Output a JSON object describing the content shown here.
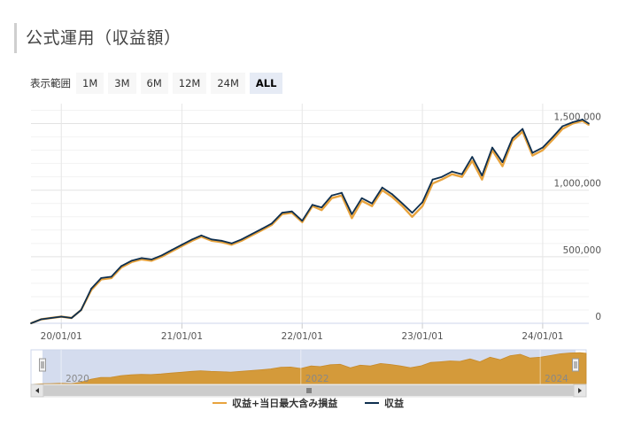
{
  "page": {
    "title": "公式運用（収益額）"
  },
  "range_selector": {
    "label": "表示範囲",
    "buttons": [
      {
        "label": "1M"
      },
      {
        "label": "3M"
      },
      {
        "label": "6M"
      },
      {
        "label": "12M"
      },
      {
        "label": "24M"
      },
      {
        "label": "ALL",
        "active": true
      }
    ]
  },
  "colors": {
    "series_a": "#E8A33D",
    "series_b": "#0E2F4F",
    "navigator_fill": "#D49A3A",
    "navigator_mask": "#ccd6eb"
  },
  "icons": {
    "scroll_left": "arrow-left-icon",
    "scroll_right": "arrow-right-icon",
    "scroll_grip": "grip-icon",
    "handle": "drag-handle-icon"
  },
  "chart_data": {
    "type": "line",
    "x_axis": {
      "type": "date",
      "range": [
        "2019-10-01",
        "2024-05-20"
      ],
      "tick_labels": [
        "20/01/01",
        "21/01/01",
        "22/01/01",
        "23/01/01",
        "24/01/01"
      ],
      "tick_dates": [
        "2020-01-01",
        "2021-01-01",
        "2022-01-01",
        "2023-01-01",
        "2024-01-01"
      ]
    },
    "y_axis": {
      "range": [
        0,
        1650000
      ],
      "tick_values": [
        0,
        500000,
        1000000,
        1500000
      ],
      "tick_labels": [
        "0",
        "500,000",
        "1,000,000",
        "1,500,000"
      ],
      "position": "right"
    },
    "grid": true,
    "legend_position": "bottom-center",
    "navigator": {
      "year_labels": [
        "2020",
        "2022",
        "2024"
      ],
      "year_dates": [
        "2020-01-01",
        "2022-01-01",
        "2024-01-01"
      ]
    },
    "x": [
      "2019-10-01",
      "2019-11-01",
      "2019-12-01",
      "2020-01-01",
      "2020-02-01",
      "2020-03-01",
      "2020-04-01",
      "2020-05-01",
      "2020-06-01",
      "2020-07-01",
      "2020-08-01",
      "2020-09-01",
      "2020-10-01",
      "2020-11-01",
      "2020-12-01",
      "2021-01-01",
      "2021-02-01",
      "2021-03-01",
      "2021-04-01",
      "2021-05-01",
      "2021-06-01",
      "2021-07-01",
      "2021-08-01",
      "2021-09-01",
      "2021-10-01",
      "2021-11-01",
      "2021-12-01",
      "2022-01-01",
      "2022-02-01",
      "2022-03-01",
      "2022-04-01",
      "2022-05-01",
      "2022-06-01",
      "2022-07-01",
      "2022-08-01",
      "2022-09-01",
      "2022-10-01",
      "2022-11-01",
      "2022-12-01",
      "2023-01-01",
      "2023-02-01",
      "2023-03-01",
      "2023-04-01",
      "2023-05-01",
      "2023-06-01",
      "2023-07-01",
      "2023-08-01",
      "2023-09-01",
      "2023-10-01",
      "2023-11-01",
      "2023-12-01",
      "2024-01-01",
      "2024-02-01",
      "2024-03-01",
      "2024-04-01",
      "2024-05-01",
      "2024-05-20"
    ],
    "series": [
      {
        "name": "収益+当日最大含み損益",
        "values": [
          0,
          30000,
          40000,
          50000,
          40000,
          100000,
          250000,
          330000,
          340000,
          420000,
          460000,
          480000,
          470000,
          500000,
          540000,
          580000,
          620000,
          650000,
          620000,
          610000,
          590000,
          620000,
          660000,
          700000,
          740000,
          820000,
          830000,
          760000,
          880000,
          850000,
          940000,
          960000,
          790000,
          920000,
          880000,
          1000000,
          950000,
          880000,
          800000,
          880000,
          1050000,
          1080000,
          1120000,
          1100000,
          1220000,
          1080000,
          1300000,
          1180000,
          1370000,
          1440000,
          1260000,
          1300000,
          1380000,
          1460000,
          1500000,
          1520000,
          1490000
        ]
      },
      {
        "name": "収益",
        "values": [
          0,
          30000,
          40000,
          50000,
          40000,
          100000,
          260000,
          340000,
          350000,
          430000,
          470000,
          490000,
          480000,
          510000,
          550000,
          590000,
          630000,
          660000,
          630000,
          620000,
          600000,
          630000,
          670000,
          710000,
          750000,
          830000,
          840000,
          770000,
          890000,
          870000,
          960000,
          980000,
          820000,
          940000,
          900000,
          1020000,
          970000,
          900000,
          830000,
          910000,
          1080000,
          1100000,
          1140000,
          1120000,
          1250000,
          1110000,
          1320000,
          1210000,
          1390000,
          1460000,
          1280000,
          1320000,
          1400000,
          1480000,
          1510000,
          1530000,
          1500000
        ]
      }
    ]
  }
}
